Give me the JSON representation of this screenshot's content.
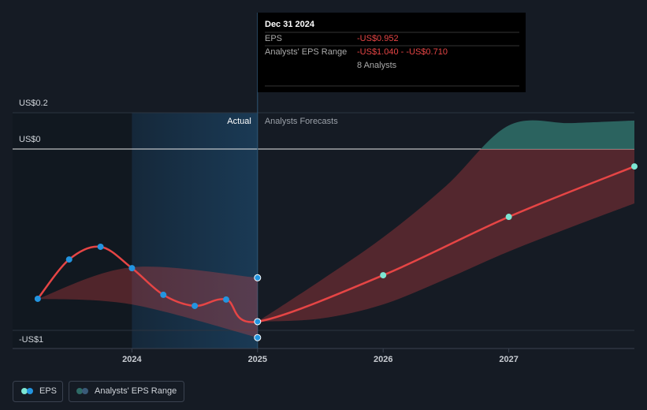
{
  "tooltip": {
    "date": "Dec 31 2024",
    "rows": [
      {
        "label": "EPS",
        "value": "-US$0.952"
      },
      {
        "label": "Analysts' EPS Range",
        "value": "-US$1.040 - -US$0.710"
      }
    ],
    "analysts": "8 Analysts"
  },
  "chart_data": {
    "type": "line",
    "actual_label": "Actual",
    "forecast_label": "Analysts Forecasts",
    "divider": 2025,
    "xlim": [
      2023.05,
      2028.0
    ],
    "xticks": [
      2024,
      2025,
      2026,
      2027
    ],
    "ylim": [
      -1.1,
      0.2
    ],
    "yticks": [
      {
        "value": 0.2,
        "label": "US$0.2"
      },
      {
        "value": 0,
        "label": "US$0"
      },
      {
        "value": -1,
        "label": "-US$1"
      }
    ],
    "series": [
      {
        "name": "EPS",
        "color": "#e64545",
        "actual_color": "#2394df",
        "forecast_color": "#7ce6d3",
        "x": [
          2023.25,
          2023.5,
          2023.75,
          2024.0,
          2024.25,
          2024.5,
          2024.75,
          2025.0,
          2026.0,
          2027.0,
          2028.0
        ],
        "values": [
          -0.826,
          -0.609,
          -0.539,
          -0.657,
          -0.804,
          -0.865,
          -0.83,
          -0.952,
          -0.696,
          -0.374,
          -0.096
        ]
      }
    ],
    "range": {
      "name": "Analysts' EPS Range",
      "color": "#e64545",
      "positive_color": "#2e6b66",
      "parts": [
        {
          "x": [
            2023.25,
            2024.0,
            2025.0
          ],
          "low": [
            -0.826,
            -0.857,
            -1.04
          ],
          "high": [
            -0.826,
            -0.652,
            -0.71
          ]
        },
        {
          "x": [
            2025.0,
            2025.5,
            2026.0,
            2026.5,
            2027.0,
            2027.5,
            2028.0
          ],
          "low": [
            -0.952,
            -0.935,
            -0.857,
            -0.717,
            -0.565,
            -0.43,
            -0.3
          ],
          "high": [
            -0.952,
            -0.726,
            -0.487,
            -0.204,
            0.13,
            0.143,
            0.157
          ]
        }
      ]
    }
  }
}
